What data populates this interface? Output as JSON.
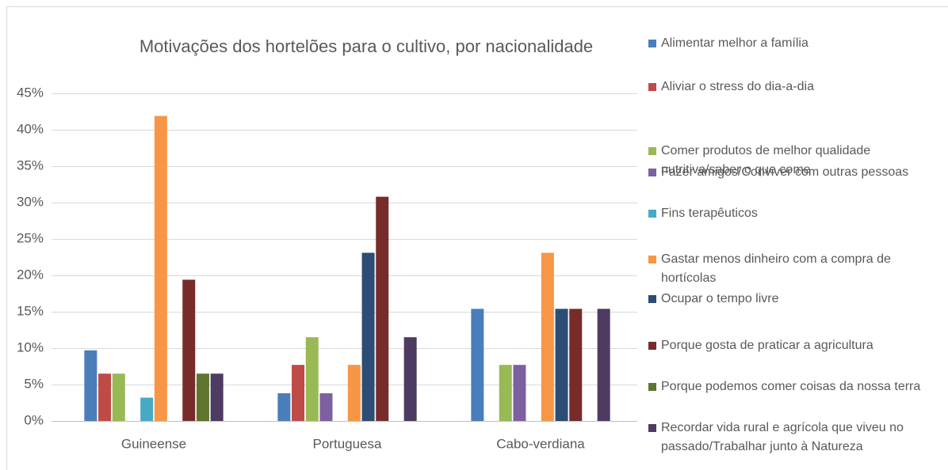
{
  "chart_data": {
    "type": "bar",
    "title": "Motivações dos hortelões para o cultivo, por nacionalidade",
    "categories": [
      "Guineense",
      "Portuguesa",
      "Cabo-verdiana"
    ],
    "series": [
      {
        "name": "Alimentar melhor a família",
        "color": "#4a7ebb",
        "values": [
          9.7,
          3.8,
          15.4
        ]
      },
      {
        "name": "Aliviar o stress do dia-a-dia",
        "color": "#be4b48",
        "values": [
          6.5,
          7.7,
          0
        ]
      },
      {
        "name": "Comer produtos de melhor qualidade nutritiva/saber o que come",
        "color": "#98b954",
        "values": [
          6.5,
          11.5,
          7.7
        ]
      },
      {
        "name": "Fazer amigos/Conviver com outras pessoas",
        "color": "#7d60a0",
        "values": [
          0,
          3.8,
          7.7
        ]
      },
      {
        "name": "Fins terapêuticos",
        "color": "#46aac5",
        "values": [
          3.2,
          0,
          0
        ]
      },
      {
        "name": "Gastar menos dinheiro com a compra de hortícolas",
        "color": "#f79646",
        "values": [
          41.9,
          7.7,
          23.1
        ]
      },
      {
        "name": "Ocupar o tempo livre",
        "color": "#2c4d75",
        "values": [
          0,
          23.1,
          15.4
        ]
      },
      {
        "name": "Porque gosta de praticar a agricultura",
        "color": "#772c2a",
        "values": [
          19.4,
          30.8,
          15.4
        ]
      },
      {
        "name": "Porque podemos comer coisas da nossa terra",
        "color": "#5f7530",
        "values": [
          6.5,
          0,
          0
        ]
      },
      {
        "name": "Recordar vida rural e agrícola que viveu no passado/Trabalhar junto à Natureza",
        "color": "#4d3b62",
        "values": [
          6.5,
          11.5,
          15.4
        ]
      }
    ],
    "ylim": [
      0,
      45
    ],
    "yticks": [
      {
        "value": 0,
        "label": "0%"
      },
      {
        "value": 5,
        "label": "5%"
      },
      {
        "value": 10,
        "label": "10%"
      },
      {
        "value": 15,
        "label": "15%"
      },
      {
        "value": 20,
        "label": "20%"
      },
      {
        "value": 25,
        "label": "25%"
      },
      {
        "value": 30,
        "label": "30%"
      },
      {
        "value": 35,
        "label": "35%"
      },
      {
        "value": 40,
        "label": "40%"
      },
      {
        "value": 45,
        "label": "45%"
      }
    ],
    "grid": true,
    "legend": "right"
  }
}
